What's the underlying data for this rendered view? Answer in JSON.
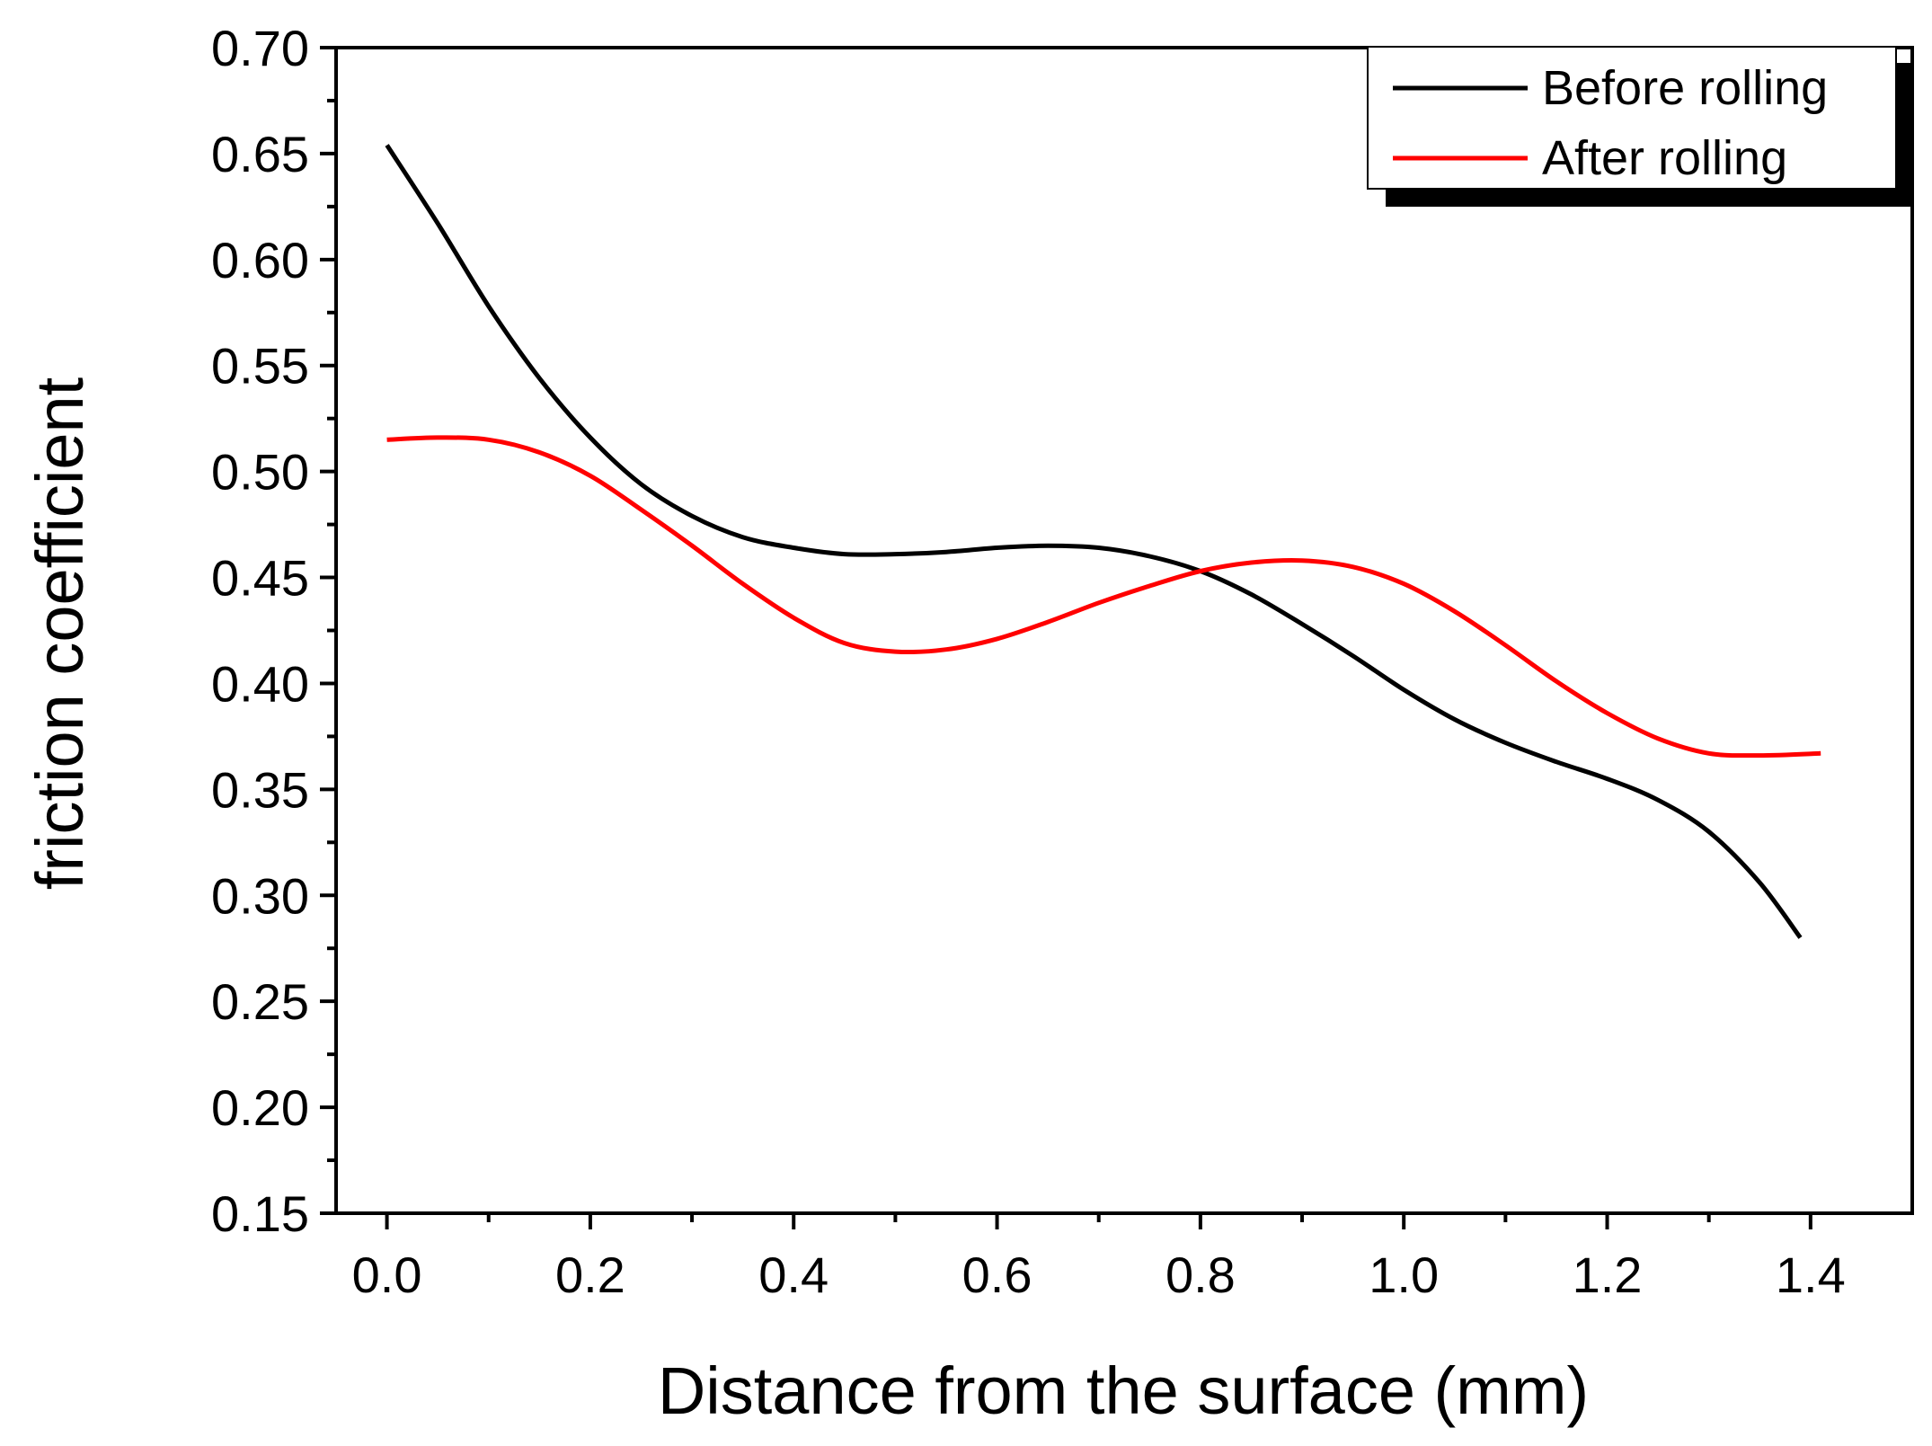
{
  "chart_data": {
    "type": "line",
    "title": "",
    "xlabel": "Distance from the surface (mm)",
    "ylabel": "friction coefficient",
    "xlim": [
      -0.05,
      1.5
    ],
    "ylim": [
      0.15,
      0.7
    ],
    "grid": false,
    "legend_position": "top-right",
    "x_ticks": [
      0.0,
      0.2,
      0.4,
      0.6,
      0.8,
      1.0,
      1.2,
      1.4
    ],
    "x_tick_labels": [
      "0.0",
      "0.2",
      "0.4",
      "0.6",
      "0.8",
      "1.0",
      "1.2",
      "1.4"
    ],
    "y_ticks": [
      0.15,
      0.2,
      0.25,
      0.3,
      0.35,
      0.4,
      0.45,
      0.5,
      0.55,
      0.6,
      0.65,
      0.7
    ],
    "y_tick_labels": [
      "0.15",
      "0.20",
      "0.25",
      "0.30",
      "0.35",
      "0.40",
      "0.45",
      "0.50",
      "0.55",
      "0.60",
      "0.65",
      "0.70"
    ],
    "series": [
      {
        "name": "Before rolling",
        "color": "#000000",
        "x": [
          0.0,
          0.05,
          0.1,
          0.15,
          0.2,
          0.25,
          0.3,
          0.35,
          0.4,
          0.45,
          0.5,
          0.55,
          0.6,
          0.65,
          0.7,
          0.75,
          0.8,
          0.85,
          0.9,
          0.95,
          1.0,
          1.05,
          1.1,
          1.15,
          1.2,
          1.25,
          1.3,
          1.35,
          1.39
        ],
        "y": [
          0.654,
          0.617,
          0.578,
          0.544,
          0.516,
          0.494,
          0.479,
          0.469,
          0.464,
          0.461,
          0.461,
          0.462,
          0.464,
          0.465,
          0.464,
          0.46,
          0.453,
          0.442,
          0.428,
          0.413,
          0.397,
          0.383,
          0.372,
          0.363,
          0.355,
          0.345,
          0.33,
          0.306,
          0.28
        ]
      },
      {
        "name": "After rolling",
        "color": "#ff0000",
        "x": [
          0.0,
          0.05,
          0.1,
          0.15,
          0.2,
          0.25,
          0.3,
          0.35,
          0.4,
          0.45,
          0.5,
          0.55,
          0.6,
          0.65,
          0.7,
          0.75,
          0.8,
          0.85,
          0.9,
          0.95,
          1.0,
          1.05,
          1.1,
          1.15,
          1.2,
          1.25,
          1.3,
          1.35,
          1.41
        ],
        "y": [
          0.515,
          0.516,
          0.515,
          0.509,
          0.498,
          0.482,
          0.465,
          0.447,
          0.431,
          0.419,
          0.415,
          0.416,
          0.421,
          0.429,
          0.438,
          0.446,
          0.453,
          0.457,
          0.458,
          0.455,
          0.447,
          0.434,
          0.418,
          0.401,
          0.386,
          0.374,
          0.367,
          0.366,
          0.367
        ]
      }
    ]
  }
}
